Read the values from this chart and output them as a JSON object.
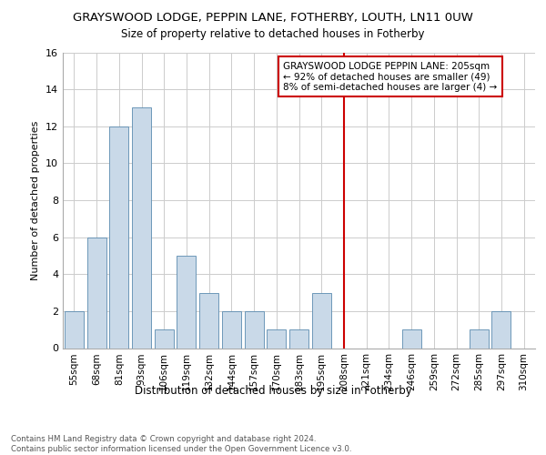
{
  "title": "GRAYSWOOD LODGE, PEPPIN LANE, FOTHERBY, LOUTH, LN11 0UW",
  "subtitle": "Size of property relative to detached houses in Fotherby",
  "xlabel": "Distribution of detached houses by size in Fotherby",
  "ylabel": "Number of detached properties",
  "footnote": "Contains HM Land Registry data © Crown copyright and database right 2024.\nContains public sector information licensed under the Open Government Licence v3.0.",
  "categories": [
    "55sqm",
    "68sqm",
    "81sqm",
    "93sqm",
    "106sqm",
    "119sqm",
    "132sqm",
    "144sqm",
    "157sqm",
    "170sqm",
    "183sqm",
    "195sqm",
    "208sqm",
    "221sqm",
    "234sqm",
    "246sqm",
    "259sqm",
    "272sqm",
    "285sqm",
    "297sqm",
    "310sqm"
  ],
  "values": [
    2,
    6,
    12,
    13,
    1,
    5,
    3,
    2,
    2,
    1,
    1,
    3,
    0,
    0,
    0,
    1,
    0,
    0,
    1,
    2,
    0
  ],
  "bar_color": "#c9d9e8",
  "bar_edge_color": "#5a8bb0",
  "vline_x_index": 12,
  "vline_color": "#cc0000",
  "annotation_text": "GRAYSWOOD LODGE PEPPIN LANE: 205sqm\n← 92% of detached houses are smaller (49)\n8% of semi-detached houses are larger (4) →",
  "annotation_box_color": "#cc0000",
  "annotation_text_color": "#000000",
  "ylim": [
    0,
    16
  ],
  "yticks": [
    0,
    2,
    4,
    6,
    8,
    10,
    12,
    14,
    16
  ],
  "grid_color": "#cccccc",
  "background_color": "#ffffff",
  "title_fontsize": 9.5,
  "subtitle_fontsize": 8.5,
  "tick_fontsize": 7.5,
  "ylabel_fontsize": 8,
  "xlabel_fontsize": 8.5,
  "footnote_fontsize": 6.2,
  "annotation_fontsize": 7.5
}
